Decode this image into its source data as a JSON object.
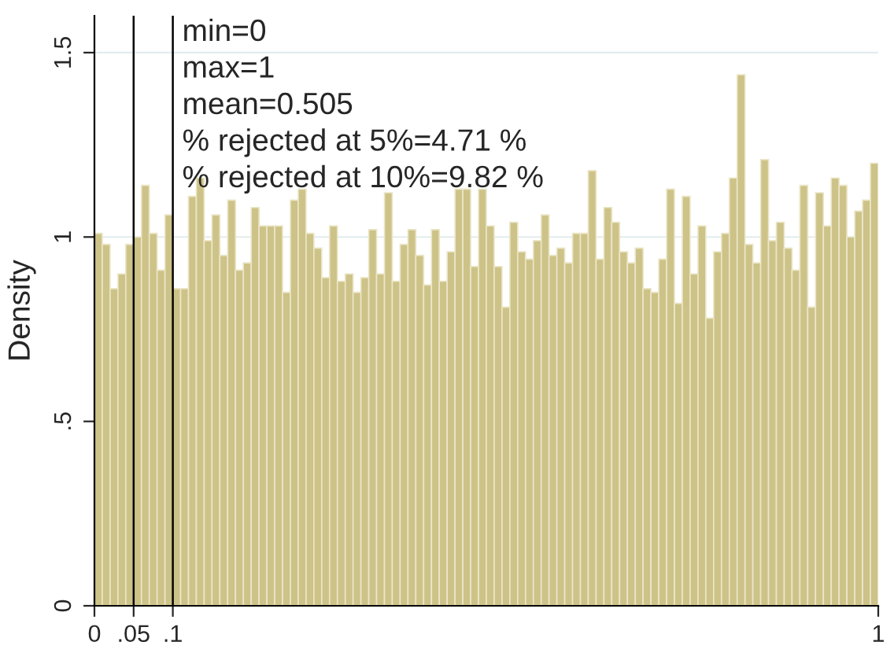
{
  "chart_data": {
    "type": "histogram",
    "ylabel": "Density",
    "bins": [
      0,
      0.01,
      0.02,
      0.03,
      0.04,
      0.05,
      0.06,
      0.07,
      0.08,
      0.09,
      0.1,
      0.11,
      0.12,
      0.13,
      0.14,
      0.15,
      0.16,
      0.17,
      0.18,
      0.19,
      0.2,
      0.21,
      0.22,
      0.23,
      0.24,
      0.25,
      0.26,
      0.27,
      0.28,
      0.29,
      0.3,
      0.31,
      0.32,
      0.33,
      0.34,
      0.35,
      0.36,
      0.37,
      0.38,
      0.39,
      0.4,
      0.41,
      0.42,
      0.43,
      0.44,
      0.45,
      0.46,
      0.47,
      0.48,
      0.49,
      0.5,
      0.51,
      0.52,
      0.53,
      0.54,
      0.55,
      0.56,
      0.57,
      0.58,
      0.59,
      0.6,
      0.61,
      0.62,
      0.63,
      0.64,
      0.65,
      0.66,
      0.67,
      0.68,
      0.69,
      0.7,
      0.71,
      0.72,
      0.73,
      0.74,
      0.75,
      0.76,
      0.77,
      0.78,
      0.79,
      0.8,
      0.81,
      0.82,
      0.83,
      0.84,
      0.85,
      0.86,
      0.87,
      0.88,
      0.89,
      0.9,
      0.91,
      0.92,
      0.93,
      0.94,
      0.95,
      0.96,
      0.97,
      0.98,
      0.99,
      1
    ],
    "values": [
      1.01,
      0.98,
      0.86,
      0.9,
      0.98,
      1.0,
      1.14,
      1.01,
      0.91,
      1.06,
      0.86,
      0.86,
      1.11,
      1.16,
      0.99,
      1.06,
      0.95,
      1.1,
      0.91,
      0.93,
      1.08,
      1.03,
      1.03,
      1.03,
      0.85,
      1.1,
      1.13,
      1.01,
      0.97,
      0.89,
      1.03,
      0.88,
      0.9,
      0.85,
      0.89,
      1.02,
      0.9,
      1.12,
      0.88,
      0.98,
      1.02,
      0.95,
      0.87,
      1.02,
      0.88,
      0.96,
      1.13,
      1.13,
      0.92,
      1.13,
      1.03,
      0.92,
      0.81,
      1.04,
      0.96,
      0.94,
      0.99,
      1.06,
      0.95,
      0.97,
      0.93,
      1.01,
      1.01,
      1.18,
      0.94,
      1.08,
      1.04,
      0.96,
      0.93,
      0.97,
      0.86,
      0.85,
      0.94,
      1.13,
      0.82,
      1.11,
      0.9,
      1.03,
      0.78,
      0.96,
      1.01,
      1.16,
      1.44,
      0.98,
      0.93,
      1.21,
      0.99,
      1.04,
      0.97,
      0.91,
      1.14,
      0.81,
      1.12,
      1.03,
      1.16,
      1.14,
      1.0,
      1.07,
      1.1,
      1.2
    ],
    "color": "#cdc388",
    "xlim": [
      0,
      1
    ],
    "ylim": [
      0,
      1.6
    ],
    "xticks": [
      0,
      {
        "value": 0.05,
        "label": ".05"
      },
      {
        "value": 0.1,
        "label": ".1"
      },
      1
    ],
    "yticks": [
      0,
      {
        "value": 0.5,
        "label": ".5"
      },
      1,
      1.5
    ],
    "grid": "y",
    "ref_lines": [
      {
        "axis": "x",
        "value": 0.05,
        "color": "#000000"
      },
      {
        "axis": "x",
        "value": 0.1,
        "color": "#000000"
      }
    ],
    "annotations": [
      "min=0",
      "max=1",
      "mean=0.505",
      "% rejected at 5%=4.71 %",
      "% rejected at 10%=9.82 %"
    ]
  }
}
